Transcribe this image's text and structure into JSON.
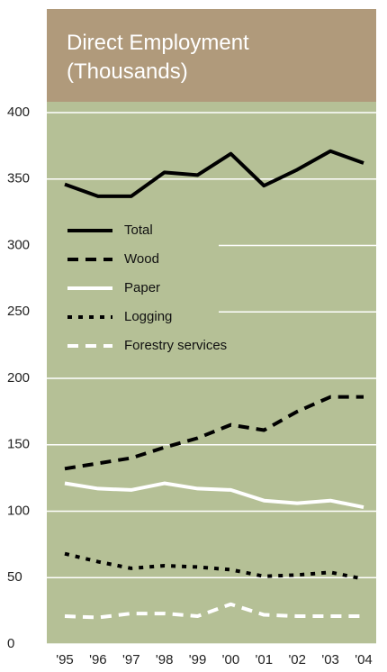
{
  "chart_data": {
    "type": "line",
    "title": "Direct Employment (Thousands)",
    "categories": [
      "'95",
      "'96",
      "'97",
      "'98",
      "'99",
      "'00",
      "'01",
      "'02",
      "'03",
      "'04"
    ],
    "series": [
      {
        "name": "Total",
        "color": "#000000",
        "dash": "solid",
        "values": [
          346,
          337,
          337,
          355,
          353,
          369,
          345,
          357,
          371,
          362
        ]
      },
      {
        "name": "Wood",
        "color": "#000000",
        "dash": "dashed",
        "values": [
          132,
          136,
          140,
          148,
          155,
          165,
          161,
          175,
          186,
          186
        ]
      },
      {
        "name": "Paper",
        "color": "#ffffff",
        "dash": "solid",
        "values": [
          121,
          117,
          116,
          121,
          117,
          116,
          108,
          106,
          108,
          103
        ]
      },
      {
        "name": "Logging",
        "color": "#000000",
        "dash": "dotted",
        "values": [
          68,
          62,
          57,
          59,
          58,
          56,
          51,
          52,
          54,
          49
        ]
      },
      {
        "name": "Forestry services",
        "color": "#ffffff",
        "dash": "dashed",
        "values": [
          21,
          20,
          23,
          23,
          21,
          30,
          22,
          21,
          21,
          21
        ]
      }
    ],
    "ylim": [
      0,
      400
    ],
    "yticks": [
      0,
      50,
      100,
      150,
      200,
      250,
      300,
      350,
      400
    ],
    "grid": true,
    "legend": "left"
  }
}
